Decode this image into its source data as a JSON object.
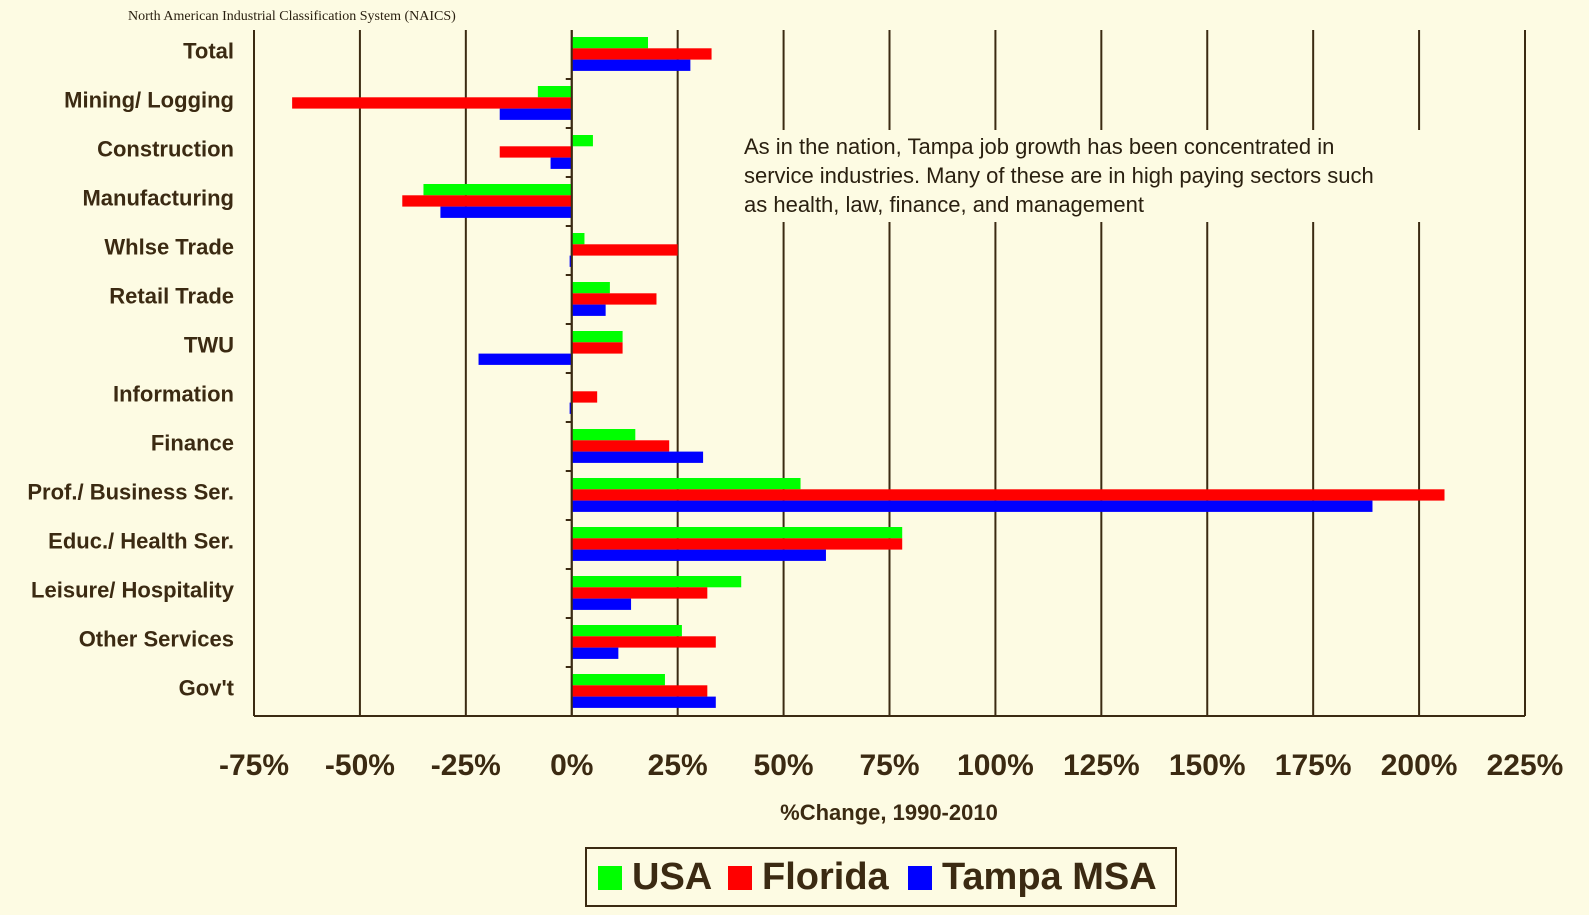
{
  "chart_data": {
    "type": "bar",
    "orientation": "horizontal",
    "note": "North American Industrial Classification System (NAICS)",
    "annotation": [
      "As in the nation, Tampa job growth has been concentrated in",
      "service industries.  Many of these are in high paying sectors such",
      "as health, law, finance, and management"
    ],
    "xlabel": "%Change, 1990-2010",
    "categories": [
      "Total",
      "Mining/ Logging",
      "Construction",
      "Manufacturing",
      "Whlse Trade",
      "Retail Trade",
      "TWU",
      "Information",
      "Finance",
      "Prof./ Business Ser.",
      "Educ./ Health Ser.",
      "Leisure/ Hospitality",
      "Other Services",
      "Gov't"
    ],
    "series": [
      {
        "name": "USA",
        "color": "#00ff00",
        "values": [
          18,
          -8,
          5,
          -35,
          3,
          9,
          12,
          0.2,
          15,
          54,
          78,
          40,
          26,
          22
        ]
      },
      {
        "name": "Florida",
        "color": "#ff0000",
        "values": [
          33,
          -66,
          -17,
          -40,
          25,
          20,
          12,
          6,
          23,
          206,
          78,
          32,
          34,
          32
        ]
      },
      {
        "name": "Tampa MSA",
        "color": "#0000ff",
        "values": [
          28,
          -17,
          -5,
          -31,
          -0.5,
          8,
          -22,
          -0.5,
          31,
          189,
          60,
          14,
          11,
          34
        ]
      }
    ],
    "xlim": [
      -75,
      225
    ],
    "xticks": [
      {
        "value": -75,
        "label": "-75%"
      },
      {
        "value": -50,
        "label": "-50%"
      },
      {
        "value": -25,
        "label": "-25%"
      },
      {
        "value": 0,
        "label": "0%"
      },
      {
        "value": 25,
        "label": "25%"
      },
      {
        "value": 50,
        "label": "50%"
      },
      {
        "value": 75,
        "label": "75%"
      },
      {
        "value": 100,
        "label": "100%"
      },
      {
        "value": 125,
        "label": "125%"
      },
      {
        "value": 150,
        "label": "150%"
      },
      {
        "value": 175,
        "label": "175%"
      },
      {
        "value": 200,
        "label": "200%"
      },
      {
        "value": 225,
        "label": "225%"
      }
    ],
    "grid": true,
    "legend": "bottom"
  }
}
